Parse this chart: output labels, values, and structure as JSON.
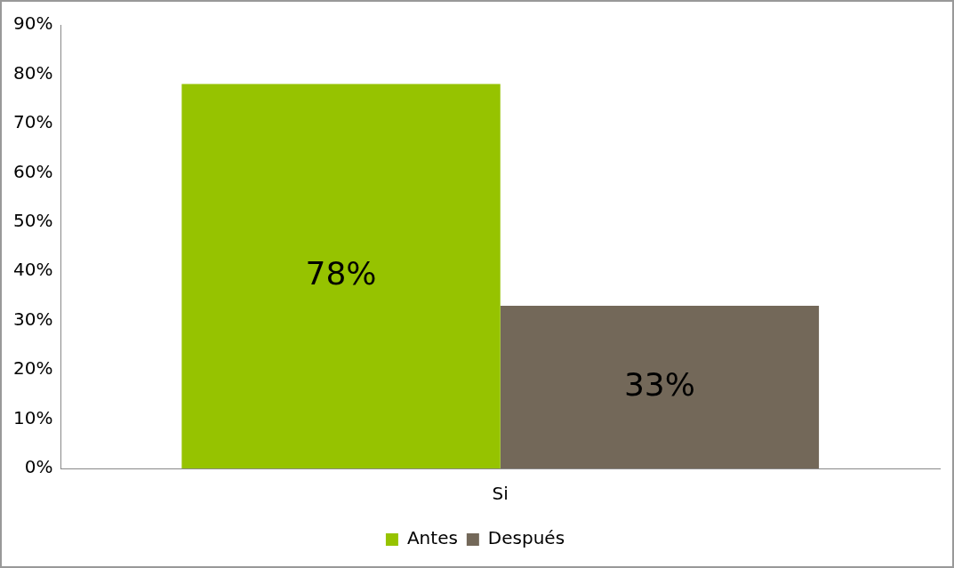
{
  "chart_data": {
    "type": "bar",
    "categories": [
      "Si"
    ],
    "series": [
      {
        "name": "Antes",
        "color": "#96c300",
        "values": [
          78
        ],
        "value_labels": [
          "78%"
        ]
      },
      {
        "name": "Después",
        "color": "#736859",
        "values": [
          33
        ],
        "value_labels": [
          "33%"
        ]
      }
    ],
    "ylim": [
      0,
      90
    ],
    "yticks": [
      {
        "value": 0,
        "label": "0%"
      },
      {
        "value": 10,
        "label": "10%"
      },
      {
        "value": 20,
        "label": "20%"
      },
      {
        "value": 30,
        "label": "30%"
      },
      {
        "value": 40,
        "label": "40%"
      },
      {
        "value": 50,
        "label": "50%"
      },
      {
        "value": 60,
        "label": "60%"
      },
      {
        "value": 70,
        "label": "70%"
      },
      {
        "value": 80,
        "label": "80%"
      },
      {
        "value": 90,
        "label": "90%"
      }
    ],
    "grid": false,
    "legend": "bottom"
  }
}
